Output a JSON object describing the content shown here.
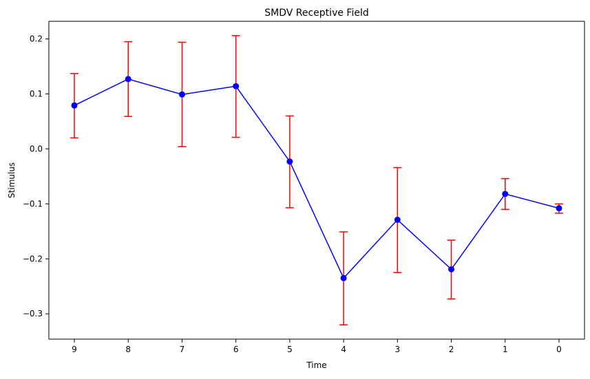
{
  "chart_data": {
    "type": "line",
    "title": "SMDV Receptive Field",
    "xlabel": "Time",
    "ylabel": "Stimulus",
    "x": [
      9,
      8,
      7,
      6,
      5,
      4,
      3,
      2,
      1,
      0
    ],
    "x_tick_labels": [
      "9",
      "8",
      "7",
      "6",
      "5",
      "4",
      "3",
      "2",
      "1",
      "0"
    ],
    "x_reversed": true,
    "y_ticks": [
      0.2,
      0.1,
      0.0,
      -0.1,
      -0.2,
      -0.3
    ],
    "y_tick_labels": [
      "0.2",
      "0.1",
      "0.0",
      "−0.1",
      "−0.2",
      "−0.3"
    ],
    "ylim": [
      -0.346,
      0.232
    ],
    "grid": false,
    "series": [
      {
        "values": [
          0.079,
          0.127,
          0.099,
          0.114,
          -0.023,
          -0.235,
          -0.129,
          -0.219,
          -0.082,
          -0.108
        ],
        "error_upper": [
          0.137,
          0.195,
          0.194,
          0.206,
          0.06,
          -0.151,
          -0.034,
          -0.166,
          -0.054,
          -0.1
        ],
        "error_lower": [
          0.02,
          0.059,
          0.004,
          0.021,
          -0.107,
          -0.32,
          -0.225,
          -0.273,
          -0.11,
          -0.117
        ],
        "line_color": "#0000ff",
        "marker_color": "#0000ff",
        "error_color": "#ff0000"
      }
    ]
  }
}
